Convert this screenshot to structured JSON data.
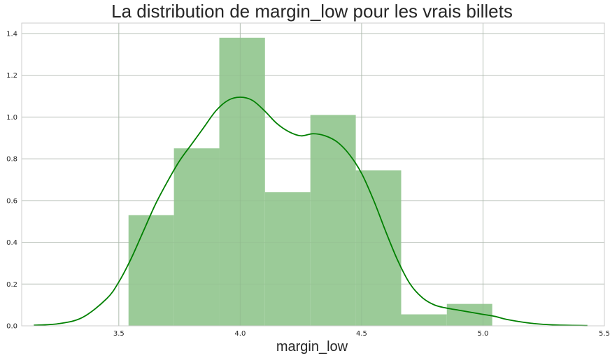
{
  "chart_data": {
    "type": "histogram",
    "title": "La distribution de margin_low pour les vrais billets",
    "xlabel": "margin_low",
    "ylabel": "",
    "xlim": [
      3.1,
      5.5
    ],
    "ylim": [
      0,
      1.45
    ],
    "grid": true,
    "x_ticks": [
      3.5,
      4.0,
      4.5,
      5.0,
      5.5
    ],
    "x_tick_labels": [
      "3.5",
      "4.0",
      "4.5",
      "5.0",
      "5.5"
    ],
    "y_ticks": [
      0.0,
      0.2,
      0.4,
      0.6,
      0.8,
      1.0,
      1.2,
      1.4
    ],
    "y_tick_labels": [
      "0.0",
      "0.2",
      "0.4",
      "0.6",
      "0.8",
      "1.0",
      "1.2",
      "1.4"
    ],
    "bins": [
      {
        "x0": 3.54,
        "x1": 3.727,
        "density": 0.53
      },
      {
        "x0": 3.727,
        "x1": 3.914,
        "density": 0.85
      },
      {
        "x0": 3.914,
        "x1": 4.102,
        "density": 1.38
      },
      {
        "x0": 4.102,
        "x1": 4.289,
        "density": 0.64
      },
      {
        "x0": 4.289,
        "x1": 4.476,
        "density": 1.01
      },
      {
        "x0": 4.476,
        "x1": 4.663,
        "density": 0.745
      },
      {
        "x0": 4.663,
        "x1": 4.851,
        "density": 0.055
      },
      {
        "x0": 4.851,
        "x1": 5.038,
        "density": 0.105
      }
    ],
    "kde": {
      "x": [
        3.15,
        3.25,
        3.35,
        3.45,
        3.5,
        3.55,
        3.6,
        3.65,
        3.7,
        3.75,
        3.8,
        3.85,
        3.9,
        3.95,
        4.0,
        4.05,
        4.1,
        4.15,
        4.2,
        4.25,
        4.3,
        4.35,
        4.4,
        4.45,
        4.5,
        4.55,
        4.6,
        4.65,
        4.7,
        4.75,
        4.8,
        4.85,
        4.9,
        4.95,
        5.0,
        5.05,
        5.1,
        5.2,
        5.3,
        5.43
      ],
      "y": [
        0.003,
        0.01,
        0.04,
        0.13,
        0.21,
        0.32,
        0.45,
        0.58,
        0.69,
        0.79,
        0.87,
        0.95,
        1.03,
        1.08,
        1.095,
        1.08,
        1.03,
        0.97,
        0.93,
        0.91,
        0.92,
        0.91,
        0.88,
        0.82,
        0.73,
        0.6,
        0.45,
        0.31,
        0.2,
        0.135,
        0.1,
        0.085,
        0.075,
        0.065,
        0.055,
        0.045,
        0.03,
        0.012,
        0.004,
        0.001
      ]
    },
    "colors": {
      "bar_fill": "#9bcb98",
      "kde_line": "#008000",
      "grid": "#cccccc",
      "frame": "#cccccc"
    }
  }
}
